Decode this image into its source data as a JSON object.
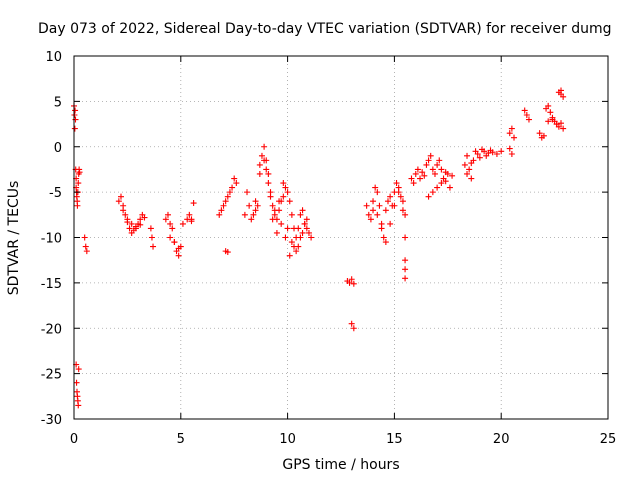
{
  "chart_data": {
    "type": "scatter",
    "title": "Day 073 of 2022, Sidereal Day-to-day VTEC variation (SDTVAR) for receiver dumg",
    "xlabel": "GPS time / hours",
    "ylabel": "SDTVAR / TECUs",
    "xlim": [
      0,
      25
    ],
    "ylim": [
      -30,
      10
    ],
    "xticks": [
      0,
      5,
      10,
      15,
      20,
      25
    ],
    "yticks": [
      -30,
      -25,
      -20,
      -15,
      -10,
      -5,
      0,
      5,
      10
    ],
    "grid": true,
    "marker": "+",
    "color": "#ff0000",
    "series": [
      {
        "name": "SDTVAR",
        "x": [
          0.0,
          0.02,
          0.04,
          0.05,
          0.07,
          0.08,
          0.1,
          0.1,
          0.12,
          0.13,
          0.15,
          0.16,
          0.18,
          0.2,
          0.22,
          0.24,
          0.26,
          0.1,
          0.12,
          0.14,
          0.16,
          0.18,
          0.2,
          0.22,
          0.5,
          0.55,
          0.6,
          2.1,
          2.2,
          2.3,
          2.4,
          2.5,
          2.6,
          2.7,
          2.8,
          2.9,
          3.0,
          3.1,
          3.2,
          3.3,
          2.3,
          2.5,
          2.7,
          2.9,
          3.1,
          3.6,
          3.7,
          3.65,
          4.3,
          4.4,
          4.5,
          4.6,
          4.7,
          4.8,
          4.9,
          5.0,
          4.5,
          4.7,
          4.9,
          5.1,
          5.3,
          5.4,
          5.5,
          5.6,
          5.5,
          6.8,
          6.9,
          7.0,
          7.1,
          7.2,
          7.3,
          7.4,
          7.5,
          7.6,
          7.1,
          7.2,
          8.0,
          8.1,
          8.2,
          8.3,
          8.4,
          8.5,
          8.6,
          8.7,
          8.8,
          8.9,
          9.0,
          9.1,
          9.2,
          9.3,
          9.4,
          9.5,
          9.6,
          9.7,
          9.8,
          9.9,
          10.0,
          10.1,
          10.2,
          10.3,
          10.4,
          10.5,
          10.6,
          10.7,
          10.8,
          10.9,
          11.0,
          11.1,
          8.5,
          8.7,
          8.9,
          9.1,
          9.3,
          9.5,
          9.7,
          9.9,
          10.1,
          10.3,
          10.5,
          10.7,
          10.9,
          9.0,
          9.2,
          9.4,
          9.6,
          9.8,
          10.0,
          10.2,
          10.4,
          10.6,
          10.8,
          12.8,
          12.9,
          13.0,
          13.1,
          13.0,
          13.1,
          13.7,
          13.8,
          13.9,
          14.0,
          14.1,
          14.2,
          14.3,
          14.4,
          14.5,
          14.6,
          14.7,
          14.8,
          14.9,
          15.0,
          15.1,
          15.2,
          15.3,
          15.4,
          14.0,
          14.2,
          14.4,
          14.6,
          14.8,
          15.0,
          15.2,
          15.4,
          15.5,
          15.5,
          15.5,
          15.5,
          15.5,
          15.8,
          15.9,
          16.0,
          16.1,
          16.2,
          16.3,
          16.4,
          16.5,
          16.6,
          16.7,
          16.8,
          16.9,
          17.0,
          17.1,
          17.2,
          17.3,
          17.4,
          17.5,
          17.6,
          17.7,
          16.6,
          16.8,
          17.0,
          17.2,
          17.4,
          18.3,
          18.4,
          18.5,
          18.6,
          18.7,
          18.8,
          18.9,
          19.0,
          19.1,
          19.2,
          19.3,
          19.4,
          19.5,
          19.6,
          19.8,
          20.0,
          18.4,
          18.6,
          20.4,
          20.5,
          20.6,
          20.4,
          20.5,
          21.1,
          21.2,
          21.3,
          21.8,
          21.9,
          22.0,
          22.1,
          22.2,
          22.3,
          22.4,
          22.5,
          22.6,
          22.7,
          22.8,
          22.9,
          22.7,
          22.8,
          22.9,
          22.8,
          22.6,
          22.4,
          22.2
        ],
        "y": [
          4.5,
          3.5,
          2.0,
          4.0,
          3.0,
          -2.5,
          -3.5,
          -4.5,
          -5.0,
          -5.5,
          -6.0,
          -6.5,
          -5.0,
          -4.0,
          -3.0,
          -2.5,
          -2.8,
          -24.0,
          -26.0,
          -27.0,
          -27.5,
          -28.0,
          -28.5,
          -24.5,
          -10.0,
          -11.0,
          -11.5,
          -6.0,
          -5.5,
          -6.5,
          -7.5,
          -8.0,
          -9.0,
          -8.5,
          -9.2,
          -8.8,
          -8.5,
          -8.0,
          -7.5,
          -7.8,
          -7.0,
          -8.3,
          -9.5,
          -9.0,
          -8.6,
          -9.0,
          -11.0,
          -10.0,
          -8.0,
          -7.5,
          -8.5,
          -9.0,
          -10.5,
          -11.5,
          -12.0,
          -11.0,
          -10.0,
          -10.5,
          -11.2,
          -8.5,
          -8.0,
          -7.5,
          -8.2,
          -6.2,
          -8.0,
          -7.5,
          -7.0,
          -6.5,
          -6.0,
          -5.5,
          -5.0,
          -4.5,
          -3.5,
          -4.0,
          -11.5,
          -11.6,
          -7.5,
          -5.0,
          -6.5,
          -8.0,
          -7.5,
          -7.0,
          -6.5,
          -2.0,
          -1.0,
          0.0,
          -1.5,
          -3.0,
          -5.0,
          -6.5,
          -7.5,
          -8.0,
          -7.0,
          -6.0,
          -5.5,
          -4.5,
          -5.0,
          -6.0,
          -7.5,
          -9.0,
          -10.0,
          -11.0,
          -10.0,
          -9.5,
          -8.5,
          -9.0,
          -9.5,
          -10.0,
          -6.0,
          -3.0,
          -1.5,
          -4.0,
          -8.0,
          -9.5,
          -8.5,
          -10.0,
          -12.0,
          -11.0,
          -9.0,
          -7.0,
          -8.0,
          -2.5,
          -5.5,
          -7.0,
          -6.0,
          -4.0,
          -9.0,
          -10.5,
          -11.5,
          -7.5,
          -8.5,
          -14.8,
          -15.0,
          -14.6,
          -15.1,
          -19.5,
          -20.0,
          -6.5,
          -7.5,
          -8.0,
          -6.0,
          -4.5,
          -5.0,
          -6.5,
          -8.5,
          -10.0,
          -7.0,
          -6.0,
          -5.5,
          -6.5,
          -5.0,
          -4.0,
          -4.5,
          -5.5,
          -6.0,
          -7.0,
          -7.5,
          -9.0,
          -10.5,
          -8.5,
          -6.5,
          -5.0,
          -7.0,
          -10.0,
          -12.5,
          -13.5,
          -14.5,
          -7.5,
          -3.5,
          -4.0,
          -3.0,
          -2.5,
          -3.5,
          -2.8,
          -3.2,
          -2.0,
          -1.5,
          -1.0,
          -2.5,
          -3.0,
          -2.0,
          -1.5,
          -2.5,
          -3.5,
          -2.8,
          -3.0,
          -4.5,
          -3.2,
          -5.5,
          -5.0,
          -4.5,
          -4.0,
          -3.8,
          -2.0,
          -1.0,
          -2.5,
          -3.5,
          -1.5,
          -0.5,
          -0.8,
          -1.2,
          -0.3,
          -0.5,
          -1.0,
          -0.7,
          -0.4,
          -0.6,
          -0.8,
          -0.5,
          -3.0,
          -1.8,
          1.5,
          2.0,
          1.0,
          -0.2,
          -0.8,
          4.0,
          3.5,
          3.0,
          1.5,
          1.0,
          1.2,
          4.2,
          4.5,
          3.8,
          3.2,
          2.8,
          2.5,
          2.2,
          2.6,
          2.0,
          6.0,
          5.8,
          5.5,
          6.2,
          2.5,
          3.0,
          2.8
        ]
      }
    ]
  }
}
